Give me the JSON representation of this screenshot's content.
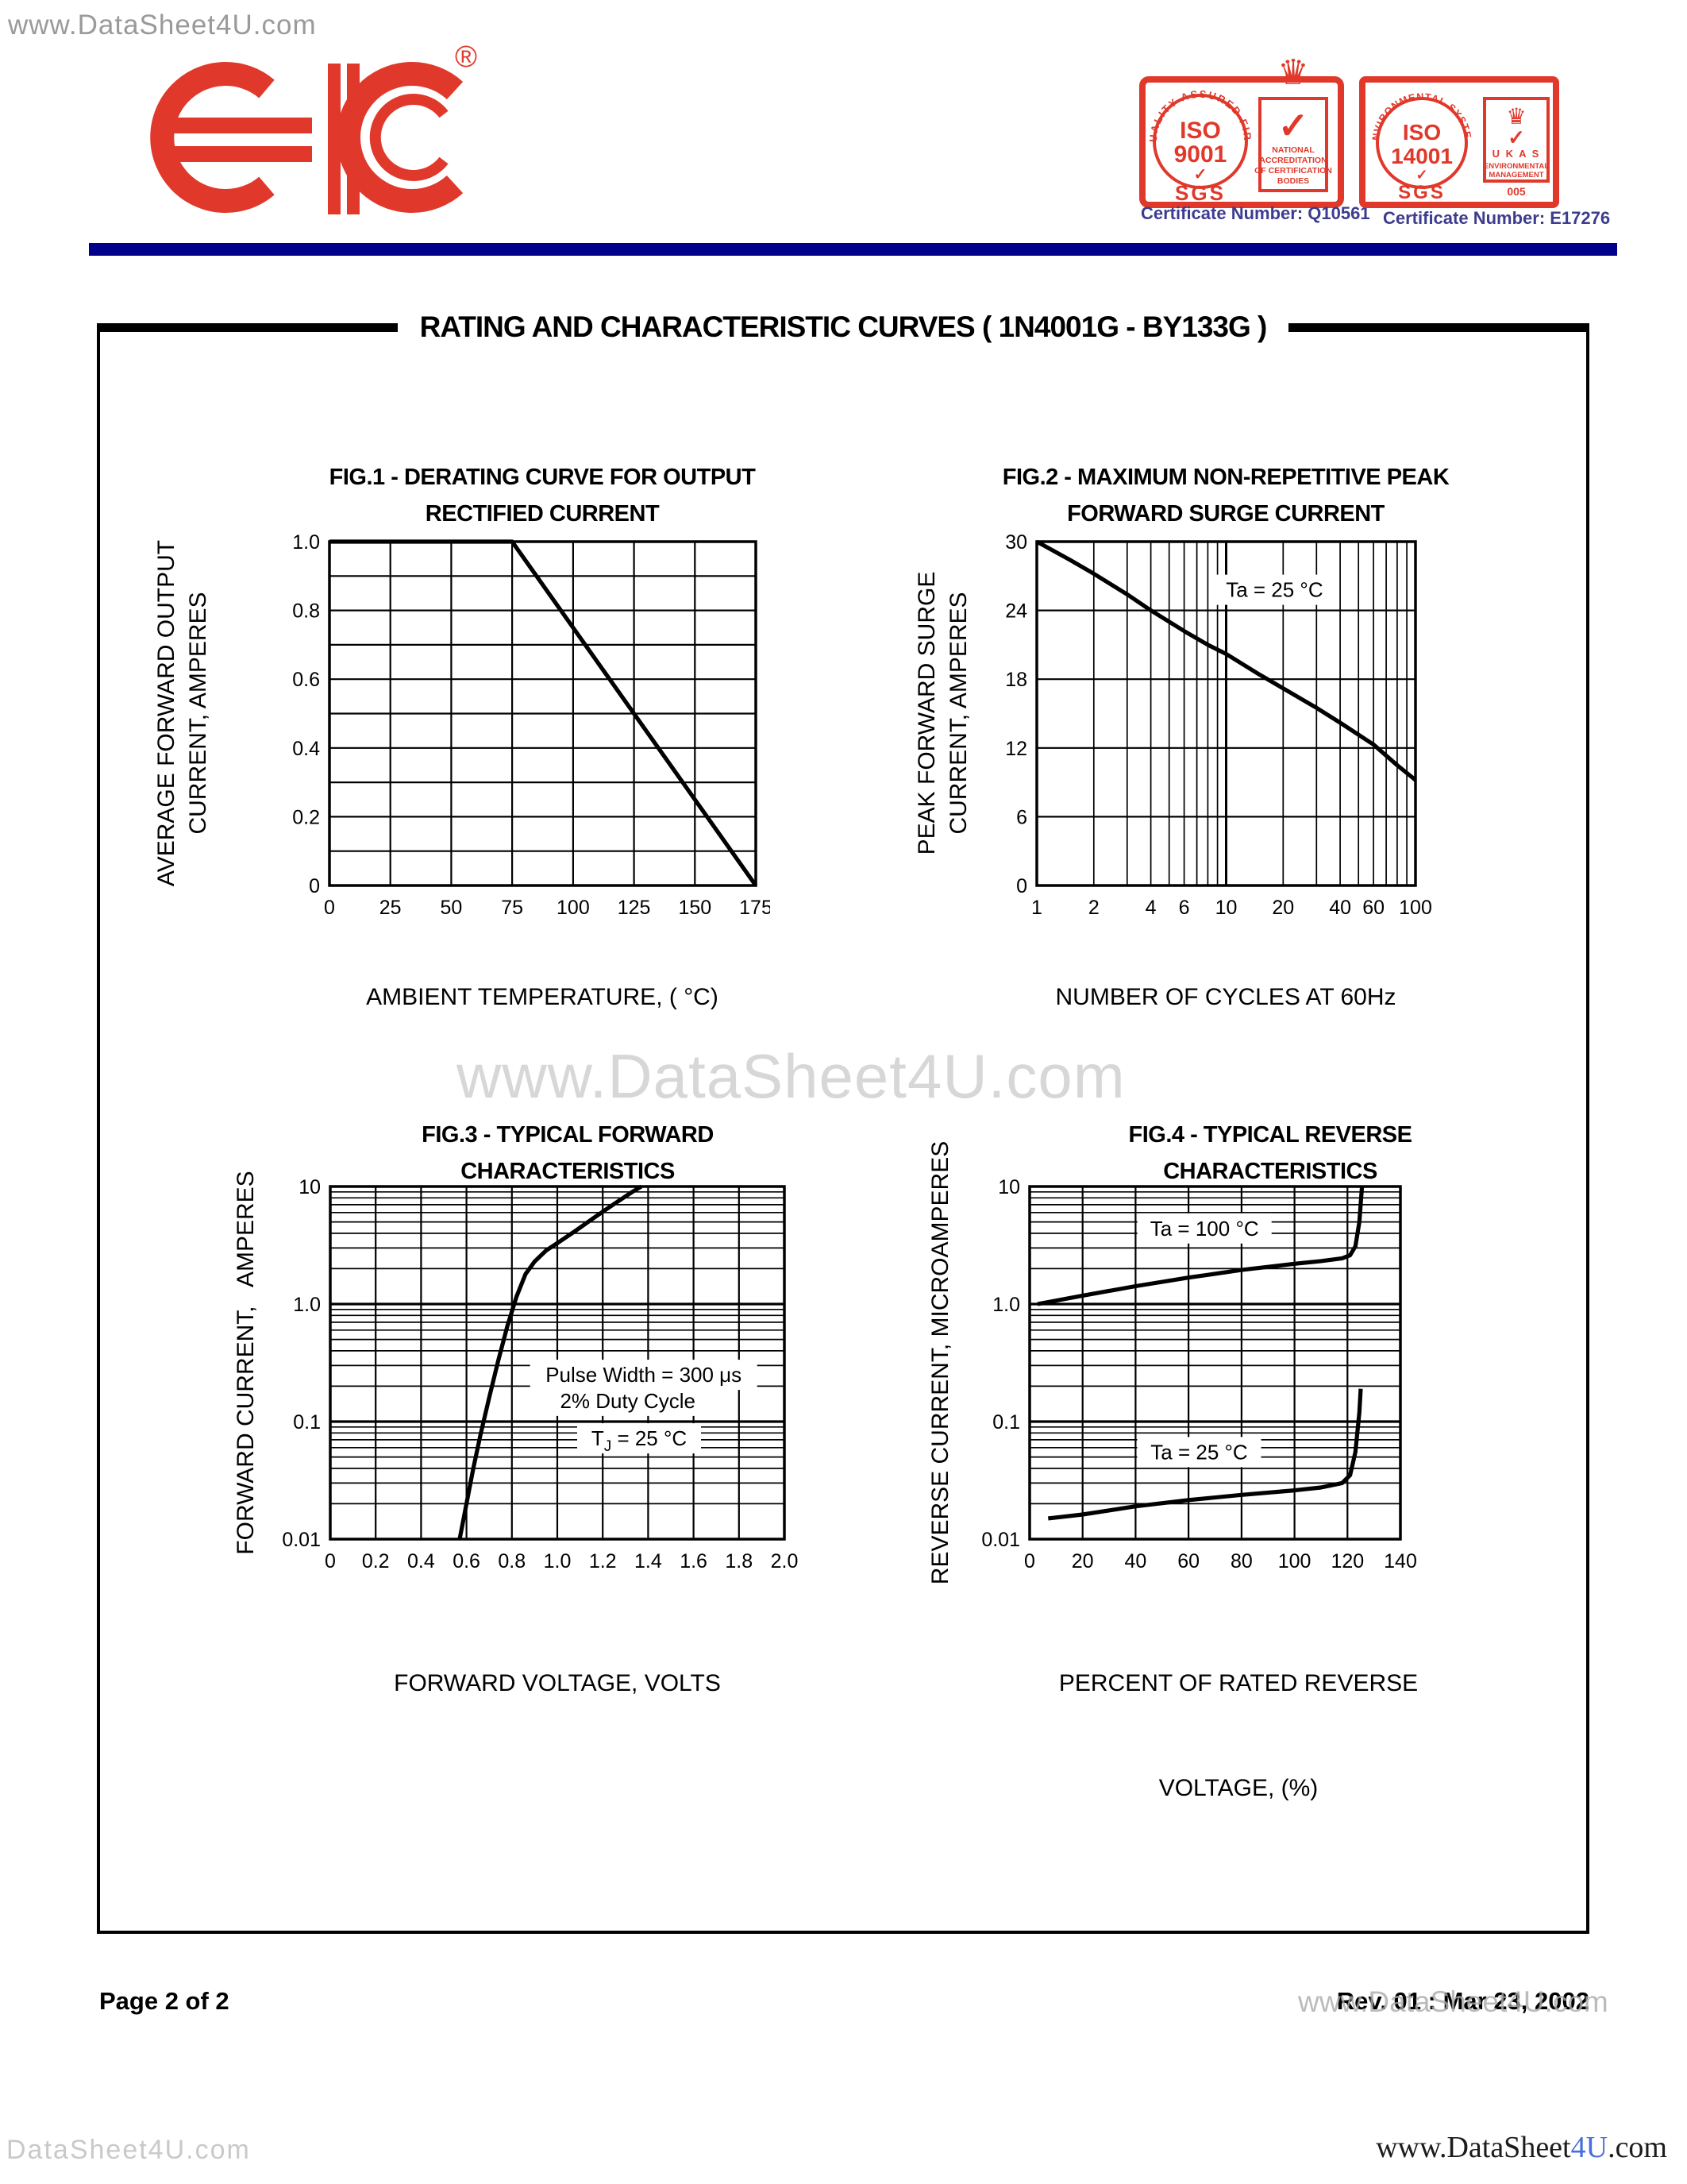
{
  "colors": {
    "brand_red": "#e0392b",
    "navy_bar": "#00008b",
    "certificate_text": "#3d3c8f",
    "watermark_gray": "#9a9a9a",
    "accent_blue": "#4a6fdc"
  },
  "header": {
    "watermark_top_left": "www.DataSheet4U.com",
    "logo": {
      "name": "EIC",
      "registered": "®"
    },
    "badges": [
      {
        "ring_text": "QUALITY ASSURED FIRM",
        "iso_line1": "ISO",
        "iso_line2": "9001",
        "check": "✓",
        "sgs": "SGS",
        "crown": "♛",
        "panel_lines": [
          "NATIONAL",
          "ACCREDITATION",
          "OF CERTIFICATION",
          "BODIES"
        ],
        "certificate": "Certificate Number: Q10561"
      },
      {
        "ring_text": "ENVIRONMENTAL SYSTEM",
        "iso_line1": "ISO",
        "iso_line2": "14001",
        "check": "✓",
        "sgs": "SGS",
        "crown": "♛",
        "panel_lines": [
          "U K A S",
          "ENVIRONMENTAL",
          "MANAGEMENT"
        ],
        "panel_number": "005",
        "certificate": "Certificate Number: E17276"
      }
    ]
  },
  "title_bar": {
    "title": "RATING AND CHARACTERISTIC CURVES  ( 1N4001G - BY133G )"
  },
  "watermark_center": "www.DataSheet4U.com",
  "chart_data": [
    {
      "fig": "FIG.1",
      "type": "line",
      "title_lines": [
        "FIG.1 - DERATING CURVE FOR OUTPUT",
        "RECTIFIED CURRENT"
      ],
      "xlabel_lines": [
        "AMBIENT TEMPERATURE, ( °C)"
      ],
      "ylabel_lines": [
        "AVERAGE FORWARD OUTPUT",
        "CURRENT, AMPERES"
      ],
      "xscale": "linear",
      "yscale": "linear",
      "xlim": [
        0,
        175
      ],
      "ylim": [
        0,
        1
      ],
      "xgrid_step": 25,
      "ygrid_step": 0.1,
      "xticks": [
        {
          "v": 0,
          "l": "0"
        },
        {
          "v": 25,
          "l": "25"
        },
        {
          "v": 50,
          "l": "50"
        },
        {
          "v": 75,
          "l": "75"
        },
        {
          "v": 100,
          "l": "100"
        },
        {
          "v": 125,
          "l": "125"
        },
        {
          "v": 150,
          "l": "150"
        },
        {
          "v": 175,
          "l": "175"
        }
      ],
      "yticks": [
        {
          "v": 0,
          "l": "0"
        },
        {
          "v": 0.2,
          "l": "0.2"
        },
        {
          "v": 0.4,
          "l": "0.4"
        },
        {
          "v": 0.6,
          "l": "0.6"
        },
        {
          "v": 0.8,
          "l": "0.8"
        },
        {
          "v": 1,
          "l": "1.0"
        }
      ],
      "series": [
        {
          "name": "derating",
          "points": [
            [
              0,
              1
            ],
            [
              75,
              1
            ],
            [
              175,
              0
            ]
          ]
        }
      ],
      "annotations": []
    },
    {
      "fig": "FIG.2",
      "type": "line",
      "title_lines": [
        "FIG.2 - MAXIMUM NON-REPETITIVE PEAK",
        "FORWARD SURGE CURRENT"
      ],
      "xlabel_lines": [
        "NUMBER OF CYCLES AT 60Hz"
      ],
      "ylabel_lines": [
        "PEAK FORWARD SURGE",
        "CURRENT, AMPERES"
      ],
      "xscale": "log",
      "yscale": "linear",
      "xlim": [
        1,
        100
      ],
      "ylim": [
        0,
        30
      ],
      "ygrid_step": 6,
      "xticks": [
        {
          "v": 1,
          "l": "1"
        },
        {
          "v": 2,
          "l": "2"
        },
        {
          "v": 4,
          "l": "4"
        },
        {
          "v": 6,
          "l": "6"
        },
        {
          "v": 10,
          "l": "10"
        },
        {
          "v": 20,
          "l": "20"
        },
        {
          "v": 40,
          "l": "40"
        },
        {
          "v": 60,
          "l": "60"
        },
        {
          "v": 100,
          "l": "100"
        }
      ],
      "yticks": [
        {
          "v": 0,
          "l": "0"
        },
        {
          "v": 6,
          "l": "6"
        },
        {
          "v": 12,
          "l": "12"
        },
        {
          "v": 18,
          "l": "18"
        },
        {
          "v": 24,
          "l": "24"
        },
        {
          "v": 30,
          "l": "30"
        }
      ],
      "series": [
        {
          "name": "surge",
          "points": [
            [
              1,
              30
            ],
            [
              1.5,
              28.4
            ],
            [
              2,
              27.2
            ],
            [
              3,
              25.4
            ],
            [
              4,
              24
            ],
            [
              6,
              22.2
            ],
            [
              8,
              21
            ],
            [
              10,
              20.2
            ],
            [
              15,
              18.4
            ],
            [
              20,
              17.2
            ],
            [
              30,
              15.5
            ],
            [
              40,
              14.2
            ],
            [
              60,
              12.3
            ],
            [
              80,
              10.5
            ],
            [
              100,
              9.2
            ]
          ]
        }
      ],
      "annotations": [
        {
          "x": 18,
          "y": 25.8,
          "text": "Ta = 25 °C"
        }
      ]
    },
    {
      "fig": "FIG.3",
      "type": "line",
      "title_lines": [
        "FIG.3 - TYPICAL FORWARD CHARACTERISTICS"
      ],
      "xlabel_lines": [
        "FORWARD VOLTAGE, VOLTS"
      ],
      "ylabel_lines": [
        "FORWARD CURRENT,   AMPERES"
      ],
      "xscale": "linear",
      "yscale": "log",
      "xlim": [
        0,
        2
      ],
      "ylim": [
        0.01,
        10
      ],
      "xgrid_step": 0.2,
      "xticks": [
        {
          "v": 0,
          "l": "0"
        },
        {
          "v": 0.2,
          "l": "0.2"
        },
        {
          "v": 0.4,
          "l": "0.4"
        },
        {
          "v": 0.6,
          "l": "0.6"
        },
        {
          "v": 0.8,
          "l": "0.8"
        },
        {
          "v": 1,
          "l": "1.0"
        },
        {
          "v": 1.2,
          "l": "1.2"
        },
        {
          "v": 1.4,
          "l": "1.4"
        },
        {
          "v": 1.6,
          "l": "1.6"
        },
        {
          "v": 1.8,
          "l": "1.8"
        },
        {
          "v": 2,
          "l": "2.0"
        }
      ],
      "yticks": [
        {
          "v": 0.01,
          "l": "0.01"
        },
        {
          "v": 0.1,
          "l": "0.1"
        },
        {
          "v": 1,
          "l": "1.0"
        },
        {
          "v": 10,
          "l": "10"
        }
      ],
      "series": [
        {
          "name": "forward",
          "points": [
            [
              0.57,
              0.01
            ],
            [
              0.6,
              0.02
            ],
            [
              0.63,
              0.04
            ],
            [
              0.66,
              0.075
            ],
            [
              0.7,
              0.16
            ],
            [
              0.74,
              0.33
            ],
            [
              0.78,
              0.65
            ],
            [
              0.82,
              1.15
            ],
            [
              0.86,
              1.8
            ],
            [
              0.9,
              2.3
            ],
            [
              0.95,
              2.85
            ],
            [
              1.0,
              3.3
            ],
            [
              1.08,
              4.2
            ],
            [
              1.16,
              5.4
            ],
            [
              1.25,
              7.1
            ],
            [
              1.33,
              9.0
            ],
            [
              1.37,
              10
            ]
          ]
        }
      ],
      "annotations": [
        {
          "x": 1.38,
          "y": 0.25,
          "text": "Pulse Width = 300 μs"
        },
        {
          "x": 1.31,
          "y": 0.15,
          "text": "2% Duty Cycle"
        },
        {
          "x": 1.36,
          "y": 0.072,
          "pre": "T",
          "sub": "J",
          "post": " = 25 °C"
        }
      ]
    },
    {
      "fig": "FIG.4",
      "type": "line",
      "title_lines": [
        "FIG.4 - TYPICAL REVERSE CHARACTERISTICS"
      ],
      "xlabel_lines": [
        "PERCENT OF RATED REVERSE",
        "VOLTAGE, (%)"
      ],
      "ylabel_lines": [
        "REVERSE CURRENT, MICROAMPERES"
      ],
      "xscale": "linear",
      "yscale": "log",
      "xlim": [
        0,
        140
      ],
      "ylim": [
        0.01,
        10
      ],
      "xgrid_step": 20,
      "xticks": [
        {
          "v": 0,
          "l": "0"
        },
        {
          "v": 20,
          "l": "20"
        },
        {
          "v": 40,
          "l": "40"
        },
        {
          "v": 60,
          "l": "60"
        },
        {
          "v": 80,
          "l": "80"
        },
        {
          "v": 100,
          "l": "100"
        },
        {
          "v": 120,
          "l": "120"
        },
        {
          "v": 140,
          "l": "140"
        }
      ],
      "yticks": [
        {
          "v": 0.01,
          "l": "0.01"
        },
        {
          "v": 0.1,
          "l": "0.1"
        },
        {
          "v": 1,
          "l": "1.0"
        },
        {
          "v": 10,
          "l": "10"
        }
      ],
      "series": [
        {
          "name": "Ta = 100 °C",
          "points": [
            [
              3,
              1.0
            ],
            [
              20,
              1.18
            ],
            [
              40,
              1.42
            ],
            [
              60,
              1.68
            ],
            [
              80,
              1.95
            ],
            [
              100,
              2.2
            ],
            [
              110,
              2.32
            ],
            [
              118,
              2.45
            ],
            [
              121,
              2.6
            ],
            [
              123,
              3.1
            ],
            [
              124.5,
              5
            ],
            [
              125.5,
              10
            ]
          ]
        },
        {
          "name": "Ta = 25 °C",
          "points": [
            [
              7,
              0.015
            ],
            [
              20,
              0.0162
            ],
            [
              40,
              0.019
            ],
            [
              60,
              0.0215
            ],
            [
              80,
              0.0238
            ],
            [
              100,
              0.026
            ],
            [
              110,
              0.0275
            ],
            [
              118,
              0.03
            ],
            [
              121,
              0.035
            ],
            [
              123,
              0.055
            ],
            [
              124.5,
              0.12
            ],
            [
              125,
              0.19
            ]
          ]
        }
      ],
      "annotations": [
        {
          "x": 66,
          "y": 4.4,
          "text": "Ta = 100 °C"
        },
        {
          "x": 64,
          "y": 0.055,
          "text": "Ta = 25 °C"
        }
      ]
    }
  ],
  "footer": {
    "page_label": "Page 2 of 2",
    "rev_label": "Rev. 01 : Mar 23, 2002",
    "watermark_overlay": "www.DataSheet4U.com",
    "bottom_left_watermark": "DataSheet4U.com",
    "bottom_right": {
      "prefix": "www.DataSheet",
      "accent": "4U",
      "suffix": ".com"
    }
  }
}
